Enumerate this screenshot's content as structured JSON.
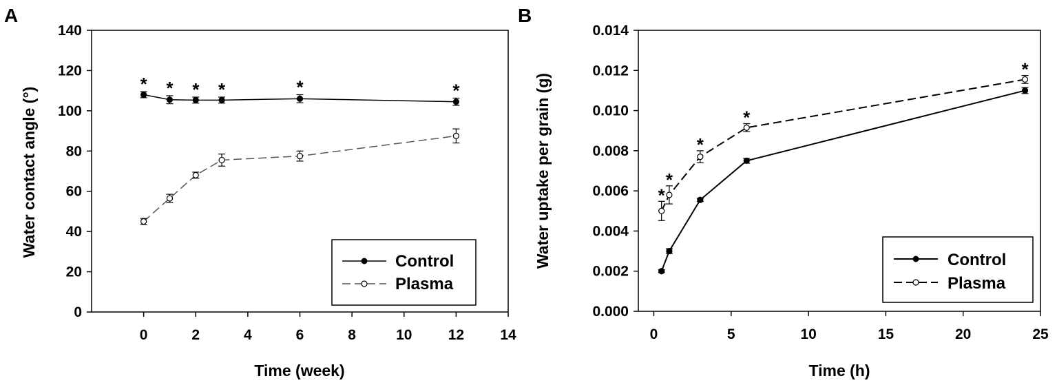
{
  "chart_data": [
    {
      "panel": "A",
      "type": "line",
      "title": "",
      "xlabel": "Time (week)",
      "ylabel": "Water contact angle (°)",
      "xlim": [
        -2,
        14
      ],
      "ylim": [
        0,
        140
      ],
      "xticks": [
        0,
        2,
        4,
        6,
        8,
        10,
        12,
        14
      ],
      "yticks": [
        0,
        20,
        40,
        60,
        80,
        100,
        120,
        140
      ],
      "legend_position": "bottom-right",
      "series": [
        {
          "name": "Control",
          "marker": "filled",
          "dash": "solid",
          "x": [
            0,
            1,
            2,
            3,
            6,
            12
          ],
          "y": [
            108,
            105.5,
            105.3,
            105.3,
            106,
            104.5
          ],
          "err": [
            1.5,
            2,
            1.5,
            1.5,
            2,
            1.8
          ]
        },
        {
          "name": "Plasma",
          "marker": "open",
          "dash": "long-dash",
          "x": [
            0,
            1,
            2,
            3,
            6,
            12
          ],
          "y": [
            45,
            56.5,
            68,
            75.5,
            77.5,
            87.5
          ],
          "err": [
            1.5,
            2,
            1.5,
            3,
            2.5,
            3.5
          ]
        }
      ],
      "significance": {
        "symbol": "*",
        "x": [
          0,
          1,
          2,
          3,
          6,
          12
        ]
      }
    },
    {
      "panel": "B",
      "type": "line",
      "title": "",
      "xlabel": "Time (h)",
      "ylabel": "Water uptake per grain (g)",
      "xlim": [
        -1,
        25
      ],
      "ylim": [
        0,
        0.014
      ],
      "xticks": [
        0,
        5,
        10,
        15,
        20,
        25
      ],
      "yticks": [
        0.0,
        0.002,
        0.004,
        0.006,
        0.008,
        0.01,
        0.012,
        0.014
      ],
      "ytick_labels": [
        "0.000",
        "0.002",
        "0.004",
        "0.006",
        "0.008",
        "0.010",
        "0.012",
        "0.014"
      ],
      "legend_position": "bottom-right",
      "series": [
        {
          "name": "Control",
          "marker": "filled",
          "dash": "solid",
          "x": [
            0.5,
            1,
            3,
            6,
            24
          ],
          "y": [
            0.002,
            0.003,
            0.00555,
            0.0075,
            0.011
          ],
          "err": [
            7e-05,
            0.00012,
            8e-05,
            0.00012,
            0.00015
          ]
        },
        {
          "name": "Plasma",
          "marker": "open",
          "dash": "long-dash",
          "x": [
            0.5,
            1,
            3,
            6,
            24
          ],
          "y": [
            0.005,
            0.0058,
            0.0077,
            0.00915,
            0.01155
          ],
          "err": [
            0.00048,
            0.00045,
            0.0003,
            0.0002,
            0.0002
          ]
        }
      ],
      "significance": {
        "symbol": "*",
        "x": [
          0.5,
          1,
          3,
          6,
          24
        ]
      }
    }
  ]
}
